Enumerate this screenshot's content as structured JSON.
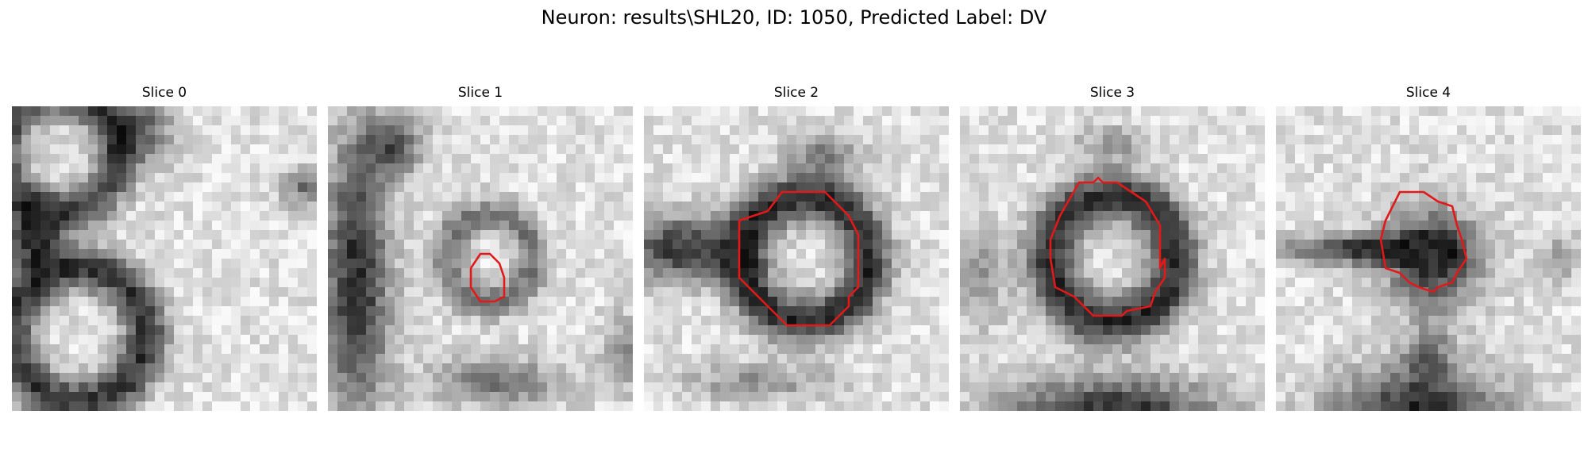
{
  "figure": {
    "title": "Neuron: results\\SHL20, ID: 1050, Predicted Label: DV",
    "outline_color": "#e11919"
  },
  "panels": [
    {
      "title": "Slice 0",
      "outline": null
    },
    {
      "title": "Slice 1",
      "outline": "small"
    },
    {
      "title": "Slice 2",
      "outline": "large"
    },
    {
      "title": "Slice 3",
      "outline": "large"
    },
    {
      "title": "Slice 4",
      "outline": "medium"
    }
  ]
}
